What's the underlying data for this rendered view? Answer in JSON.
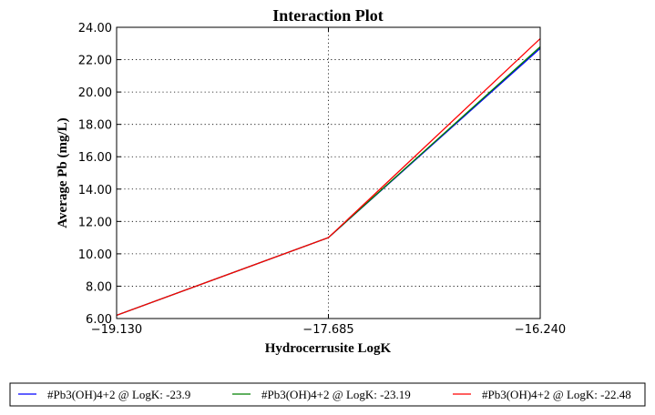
{
  "chart_data": {
    "type": "line",
    "title": "Interaction Plot",
    "xlabel": "Hydrocerrusite LogK",
    "ylabel": "Average Pb (mg/L)",
    "x": [
      -19.13,
      -17.685,
      -16.24
    ],
    "x_tick_labels": [
      "−19.130",
      "−17.685",
      "−16.240"
    ],
    "xlim": [
      -19.13,
      -16.24
    ],
    "ylim": [
      6.0,
      24.0
    ],
    "y_ticks": [
      6.0,
      8.0,
      10.0,
      12.0,
      14.0,
      16.0,
      18.0,
      20.0,
      22.0,
      24.0
    ],
    "y_tick_labels": [
      "6.00",
      "8.00",
      "10.00",
      "12.00",
      "14.00",
      "16.00",
      "18.00",
      "20.00",
      "22.00",
      "24.00"
    ],
    "grid": true,
    "legend_position": "bottom, outside plot",
    "series": [
      {
        "name": "#Pb3(OH)4+2 @ LogK: -23.9",
        "color": "#0000ff",
        "values": [
          6.2,
          11.0,
          22.7
        ]
      },
      {
        "name": "#Pb3(OH)4+2 @ LogK: -23.19",
        "color": "#008000",
        "values": [
          6.2,
          11.0,
          22.8
        ]
      },
      {
        "name": "#Pb3(OH)4+2 @ LogK: -22.48",
        "color": "#ff0000",
        "values": [
          6.2,
          11.0,
          23.3
        ]
      }
    ]
  }
}
